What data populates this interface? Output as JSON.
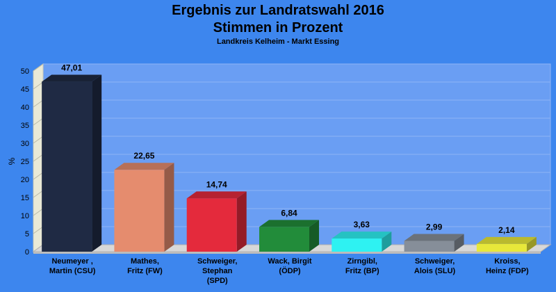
{
  "chart_data": {
    "type": "bar",
    "title": "Ergebnis zur Landratswahl 2016",
    "subtitle_line": "Stimmen in Prozent",
    "subtitle": "Landkreis Kelheim - Markt Essing",
    "ylabel": "%",
    "xlabel": "",
    "ylim": [
      0,
      50
    ],
    "yticks": [
      0,
      5,
      10,
      15,
      20,
      25,
      30,
      35,
      40,
      45,
      50
    ],
    "grid": true,
    "legend": "none",
    "categories": [
      [
        "Neumeyer ,",
        "Martin (CSU)"
      ],
      [
        "Mathes,",
        "Fritz (FW)"
      ],
      [
        "Schweiger,",
        "Stephan",
        "(SPD)"
      ],
      [
        "Wack, Birgit",
        "(ÖDP)"
      ],
      [
        "Zirngibl,",
        "Fritz (BP)"
      ],
      [
        "Schweiger,",
        "Alois (SLU)"
      ],
      [
        "Kroiss,",
        "Heinz (FDP)"
      ]
    ],
    "values": [
      47.01,
      22.65,
      14.74,
      6.84,
      3.63,
      2.99,
      2.14
    ],
    "value_labels": [
      "47,01",
      "22,65",
      "14,74",
      "6,84",
      "3,63",
      "2,99",
      "2,14"
    ],
    "colors": [
      "#1f2a44",
      "#e58c6e",
      "#e42a3c",
      "#228c3a",
      "#2ef2f2",
      "#868e99",
      "#e8e83a"
    ]
  },
  "style": {
    "background": "#3d86ee",
    "plot_background": "#6a9ef3",
    "floor_color": "#d8d8d8"
  }
}
